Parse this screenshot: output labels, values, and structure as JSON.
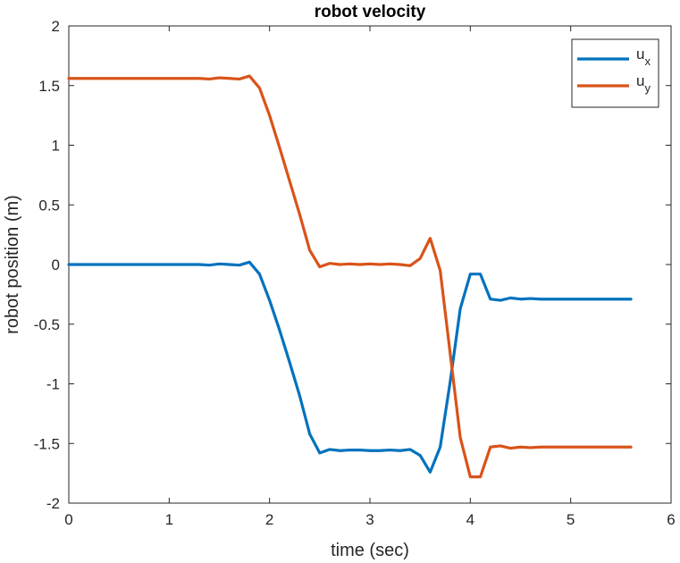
{
  "chart_data": {
    "type": "line",
    "title": "robot velocity",
    "xlabel": "time (sec)",
    "ylabel": "robot position (m)",
    "xlim": [
      0,
      6
    ],
    "ylim": [
      -2,
      2
    ],
    "xticks": [
      0,
      1,
      2,
      3,
      4,
      5,
      6
    ],
    "yticks": [
      -2,
      -1.5,
      -1,
      -0.5,
      0,
      0.5,
      1,
      1.5,
      2
    ],
    "x_tick_labels": [
      "0",
      "1",
      "2",
      "3",
      "4",
      "5",
      "6"
    ],
    "y_tick_labels": [
      "-2",
      "-1.5",
      "-1",
      "-0.5",
      "0",
      "0.5",
      "1",
      "1.5",
      "2"
    ],
    "grid": false,
    "box": true,
    "legend": {
      "placement": "top-right"
    },
    "series": [
      {
        "name": "u",
        "name_subscript": "x",
        "color": "#0072BD",
        "x": [
          0,
          0.1,
          0.2,
          0.3,
          0.4,
          0.5,
          0.6,
          0.7,
          0.8,
          0.9,
          1.0,
          1.1,
          1.2,
          1.3,
          1.4,
          1.5,
          1.6,
          1.7,
          1.8,
          1.9,
          2.0,
          2.1,
          2.2,
          2.3,
          2.4,
          2.5,
          2.6,
          2.7,
          2.8,
          2.9,
          3.0,
          3.1,
          3.2,
          3.3,
          3.4,
          3.5,
          3.6,
          3.7,
          3.8,
          3.9,
          4.0,
          4.1,
          4.2,
          4.3,
          4.4,
          4.5,
          4.6,
          4.7,
          4.8,
          4.9,
          5.0,
          5.1,
          5.2,
          5.3,
          5.4,
          5.5,
          5.6
        ],
        "values": [
          0,
          0,
          0,
          0,
          0,
          0,
          0,
          0,
          0,
          0,
          0,
          0,
          0,
          0,
          -0.005,
          0.005,
          0,
          -0.005,
          0.02,
          -0.08,
          -0.3,
          -0.55,
          -0.82,
          -1.1,
          -1.42,
          -1.58,
          -1.55,
          -1.56,
          -1.555,
          -1.555,
          -1.56,
          -1.56,
          -1.555,
          -1.56,
          -1.55,
          -1.6,
          -1.74,
          -1.53,
          -0.98,
          -0.37,
          -0.08,
          -0.08,
          -0.29,
          -0.3,
          -0.28,
          -0.29,
          -0.285,
          -0.29,
          -0.29,
          -0.29,
          -0.29,
          -0.29,
          -0.29,
          -0.29,
          -0.29,
          -0.29,
          -0.29
        ]
      },
      {
        "name": "u",
        "name_subscript": "y",
        "color": "#D95319",
        "x": [
          0,
          0.1,
          0.2,
          0.3,
          0.4,
          0.5,
          0.6,
          0.7,
          0.8,
          0.9,
          1.0,
          1.1,
          1.2,
          1.3,
          1.4,
          1.5,
          1.6,
          1.7,
          1.8,
          1.9,
          2.0,
          2.1,
          2.2,
          2.3,
          2.4,
          2.5,
          2.6,
          2.7,
          2.8,
          2.9,
          3.0,
          3.1,
          3.2,
          3.3,
          3.4,
          3.5,
          3.6,
          3.7,
          3.8,
          3.9,
          4.0,
          4.1,
          4.2,
          4.3,
          4.4,
          4.5,
          4.6,
          4.7,
          4.8,
          4.9,
          5.0,
          5.1,
          5.2,
          5.3,
          5.4,
          5.5,
          5.6
        ],
        "values": [
          1.56,
          1.56,
          1.56,
          1.56,
          1.56,
          1.56,
          1.56,
          1.56,
          1.56,
          1.56,
          1.56,
          1.56,
          1.56,
          1.56,
          1.555,
          1.565,
          1.56,
          1.555,
          1.58,
          1.48,
          1.25,
          0.98,
          0.7,
          0.42,
          0.12,
          -0.02,
          0.01,
          0,
          0.005,
          0,
          0.005,
          0,
          0.005,
          0,
          -0.01,
          0.05,
          0.22,
          -0.05,
          -0.75,
          -1.45,
          -1.78,
          -1.78,
          -1.53,
          -1.52,
          -1.54,
          -1.53,
          -1.535,
          -1.53,
          -1.53,
          -1.53,
          -1.53,
          -1.53,
          -1.53,
          -1.53,
          -1.53,
          -1.53,
          -1.53
        ]
      }
    ]
  }
}
